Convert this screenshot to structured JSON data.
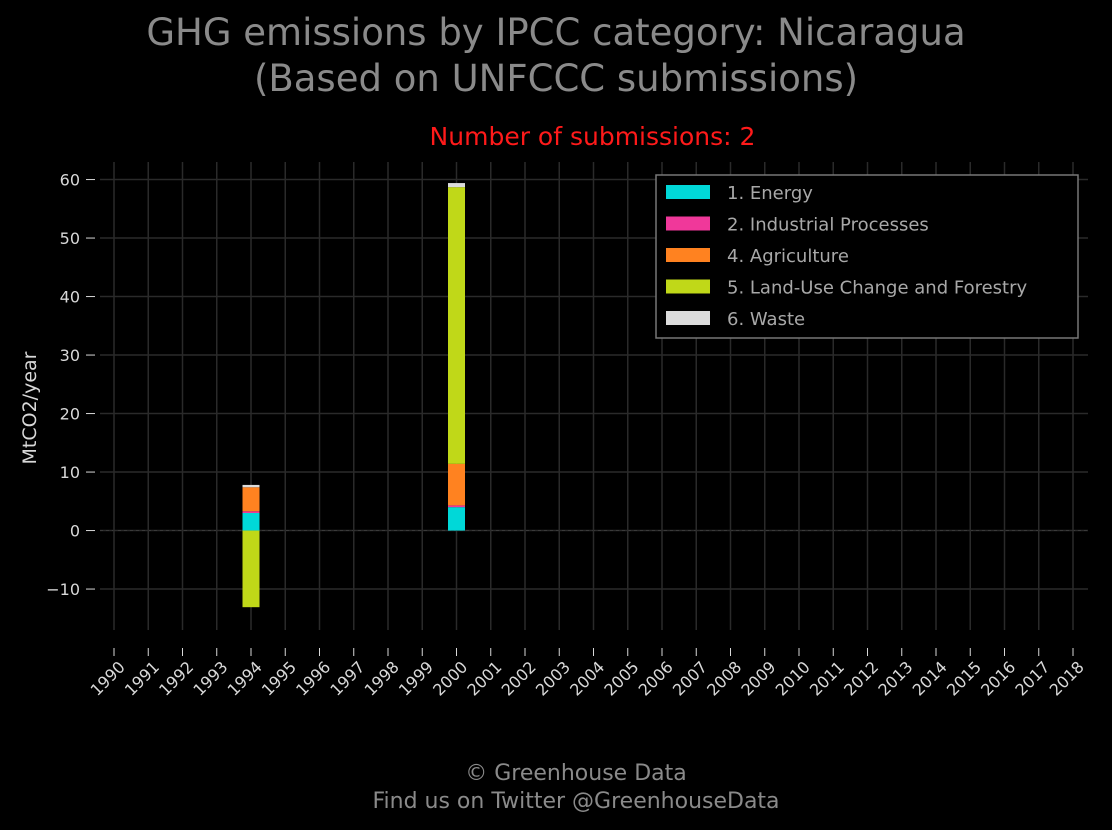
{
  "chart_data": {
    "type": "bar",
    "stacked": true,
    "title": "GHG emissions by IPCC category: Nicaragua",
    "title_line2": "(Based on UNFCCC submissions)",
    "subtitle": "Number of submissions: 2",
    "ylabel": "MtCO2/year",
    "ylim": [
      -17,
      63
    ],
    "yticks": [
      -10,
      0,
      10,
      20,
      30,
      40,
      50,
      60
    ],
    "ytick_labels": [
      "−10",
      "0",
      "10",
      "20",
      "30",
      "40",
      "50",
      "60"
    ],
    "categories": [
      "1990",
      "1991",
      "1992",
      "1993",
      "1994",
      "1995",
      "1996",
      "1997",
      "1998",
      "1999",
      "2000",
      "2001",
      "2002",
      "2003",
      "2004",
      "2005",
      "2006",
      "2007",
      "2008",
      "2009",
      "2010",
      "2011",
      "2012",
      "2013",
      "2014",
      "2015",
      "2016",
      "2017",
      "2018"
    ],
    "grid": true,
    "legend_position": "top-right",
    "series": [
      {
        "name": "1. Energy",
        "color": "#00d8d8",
        "values": {
          "1994": 3.0,
          "2000": 4.0
        }
      },
      {
        "name": "2. Industrial Processes",
        "color": "#f0389a",
        "values": {
          "1994": 0.3,
          "2000": 0.3
        }
      },
      {
        "name": "4. Agriculture",
        "color": "#ff8220",
        "values": {
          "1994": 4.1,
          "2000": 7.1
        }
      },
      {
        "name": "5. Land-Use Change and Forestry",
        "color": "#c0d818",
        "values": {
          "1994": -13.1,
          "2000": 47.3
        }
      },
      {
        "name": "6. Waste",
        "color": "#dcdcdc",
        "values": {
          "1994": 0.4,
          "2000": 0.7
        }
      }
    ]
  },
  "footer": {
    "line1": "© Greenhouse Data",
    "line2": "Find us on Twitter @GreenhouseData"
  }
}
